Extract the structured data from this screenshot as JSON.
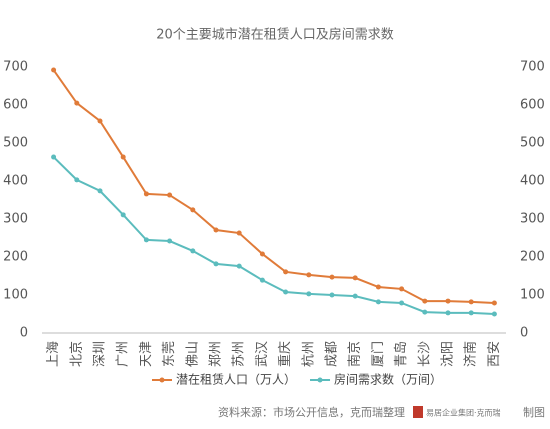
{
  "chart_data": {
    "type": "line",
    "title": "20个主要城市潜在租赁人口及房间需求数",
    "categories": [
      "上海",
      "北京",
      "深圳",
      "广州",
      "天津",
      "东莞",
      "佛山",
      "郑州",
      "苏州",
      "武汉",
      "重庆",
      "杭州",
      "成都",
      "南京",
      "厦门",
      "青岛",
      "长沙",
      "沈阳",
      "济南",
      "西安"
    ],
    "series": [
      {
        "name": "潜在租赁人口（万人）",
        "color": "#e07b39",
        "values": [
          692,
          605,
          558,
          463,
          366,
          363,
          324,
          271,
          263,
          208,
          161,
          153,
          147,
          145,
          121,
          116,
          84,
          84,
          82,
          79
        ]
      },
      {
        "name": "房间需求数（万间）",
        "color": "#5bbcbd",
        "values": [
          463,
          403,
          374,
          311,
          245,
          242,
          216,
          182,
          176,
          139,
          108,
          103,
          100,
          97,
          82,
          79,
          55,
          53,
          53,
          50
        ]
      }
    ],
    "ylim": [
      0,
      700
    ],
    "yticks": [
      0,
      100,
      200,
      300,
      400,
      500,
      600,
      700
    ],
    "y2lim": [
      0,
      700
    ],
    "y2ticks": [
      0,
      100,
      200,
      300,
      400,
      500,
      600,
      700
    ],
    "legend": "bottom",
    "source": "资料来源：市场公开信息，克而瑞整理",
    "logo": "易居企业集团·克而瑞",
    "credit": "制图"
  }
}
